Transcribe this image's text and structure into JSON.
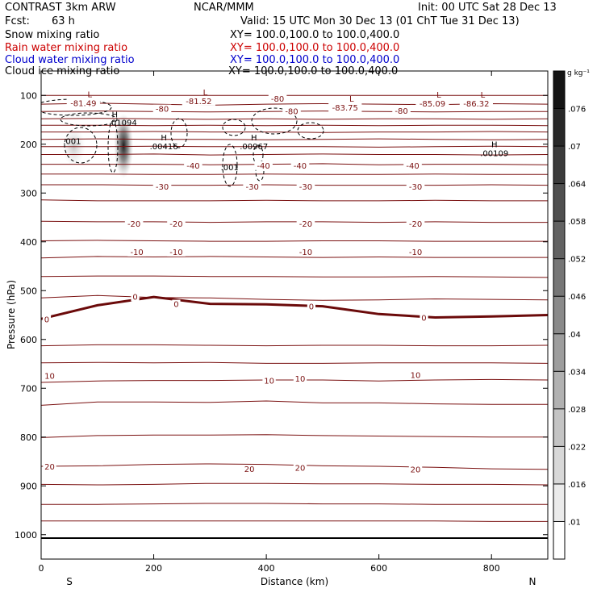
{
  "header": {
    "model": "CONTRAST  3km ARW",
    "center": "NCAR/MMM",
    "init": "Init: 00 UTC Sat 28 Dec 13",
    "fcst_label": "Fcst:",
    "fcst_value": "63 h",
    "valid": "Valid: 15 UTC Mon 30 Dec 13 (01 ChT Tue 31 Dec 13)",
    "fields": [
      {
        "name": "Snow mixing ratio",
        "xy": "XY= 100.0,100.0 to 100.0,400.0",
        "color": "#000000"
      },
      {
        "name": "Rain water mixing ratio",
        "xy": "XY= 100.0,100.0 to 100.0,400.0",
        "color": "#cc0000"
      },
      {
        "name": "Cloud water mixing ratio",
        "xy": "XY= 100.0,100.0 to 100.0,400.0",
        "color": "#0000cc"
      },
      {
        "name": "Cloud ice mixing ratio",
        "xy": "XY= 100.0,100.0 to 100.0,400.0",
        "color": "#000000"
      }
    ]
  },
  "chart_data": {
    "type": "heatmap",
    "xlabel": "Distance (km)",
    "ylabel": "Pressure (hPa)",
    "xlim": [
      0,
      900
    ],
    "ylim": [
      1050,
      50
    ],
    "x_ticks": [
      0,
      200,
      400,
      600,
      800
    ],
    "y_ticks": [
      100,
      200,
      300,
      400,
      500,
      600,
      700,
      800,
      900,
      1000
    ],
    "x_endpoints": {
      "left": "S",
      "right": "N"
    },
    "colorbar": {
      "unit": "g kg⁻¹",
      "ticks": [
        ".01",
        ".016",
        ".022",
        ".028",
        ".034",
        ".04",
        ".046",
        ".052",
        ".058",
        ".064",
        ".07",
        ".076"
      ]
    },
    "shaded_maxima": [
      {
        "x": 125,
        "p": 195,
        "label": ".01094",
        "marker": "H"
      }
    ],
    "isotherm_labels": [
      {
        "x": 75,
        "p": 115,
        "text": "-81.49",
        "marker": "L"
      },
      {
        "x": 280,
        "p": 111,
        "text": "-81.52",
        "marker": "L"
      },
      {
        "x": 420,
        "p": 106,
        "text": "-80"
      },
      {
        "x": 215,
        "p": 127,
        "text": "-80"
      },
      {
        "x": 445,
        "p": 132,
        "text": "-80"
      },
      {
        "x": 640,
        "p": 131,
        "text": "-80"
      },
      {
        "x": 540,
        "p": 124,
        "text": "-83.75",
        "marker": "L"
      },
      {
        "x": 695,
        "p": 116,
        "text": "-85.09",
        "marker": "L"
      },
      {
        "x": 773,
        "p": 116,
        "text": "-86.32",
        "marker": "L"
      },
      {
        "x": 270,
        "p": 243,
        "text": "-40"
      },
      {
        "x": 460,
        "p": 243,
        "text": "-40"
      },
      {
        "x": 660,
        "p": 243,
        "text": "-40"
      },
      {
        "x": 395,
        "p": 243,
        "text": "-40"
      },
      {
        "x": 215,
        "p": 286,
        "text": "-30"
      },
      {
        "x": 375,
        "p": 286,
        "text": "-30"
      },
      {
        "x": 470,
        "p": 286,
        "text": "-30"
      },
      {
        "x": 665,
        "p": 286,
        "text": "-30"
      },
      {
        "x": 165,
        "p": 362,
        "text": "-20"
      },
      {
        "x": 240,
        "p": 362,
        "text": "-20"
      },
      {
        "x": 470,
        "p": 362,
        "text": "-20"
      },
      {
        "x": 665,
        "p": 362,
        "text": "-20"
      },
      {
        "x": 170,
        "p": 420,
        "text": "-10"
      },
      {
        "x": 240,
        "p": 420,
        "text": "-10"
      },
      {
        "x": 470,
        "p": 420,
        "text": "-10"
      },
      {
        "x": 665,
        "p": 420,
        "text": "-10"
      },
      {
        "x": 10,
        "p": 558,
        "text": "0"
      },
      {
        "x": 167,
        "p": 512,
        "text": "0"
      },
      {
        "x": 240,
        "p": 527,
        "text": "0"
      },
      {
        "x": 480,
        "p": 532,
        "text": "0"
      },
      {
        "x": 680,
        "p": 555,
        "text": "0"
      },
      {
        "x": 15,
        "p": 674,
        "text": "10"
      },
      {
        "x": 405,
        "p": 684,
        "text": "10"
      },
      {
        "x": 460,
        "p": 680,
        "text": "10"
      },
      {
        "x": 665,
        "p": 672,
        "text": "10"
      },
      {
        "x": 15,
        "p": 860,
        "text": "20"
      },
      {
        "x": 370,
        "p": 865,
        "text": "20"
      },
      {
        "x": 460,
        "p": 862,
        "text": "20"
      },
      {
        "x": 665,
        "p": 866,
        "text": "20"
      }
    ],
    "mixing_ratio_labels": [
      {
        "x": 55,
        "p": 193,
        "text": ".001"
      },
      {
        "x": 218,
        "p": 204,
        "text": ".00416",
        "marker": "H"
      },
      {
        "x": 335,
        "p": 247,
        "text": ".001"
      },
      {
        "x": 378,
        "p": 204,
        "text": ".00967",
        "marker": "H"
      },
      {
        "x": 805,
        "p": 218,
        "text": ".00109",
        "marker": "H"
      }
    ],
    "isotherm_levels": [
      [
        100,
        100,
        100,
        100,
        100,
        100,
        100,
        100,
        100,
        100
      ],
      [
        118,
        116,
        118,
        120,
        118,
        117,
        118,
        119,
        117,
        118
      ],
      [
        133,
        132,
        133,
        134,
        133,
        132,
        133,
        134,
        133,
        133
      ],
      [
        148,
        147,
        148,
        149,
        148,
        149,
        148,
        148,
        149,
        148
      ],
      [
        161,
        161,
        162,
        161,
        162,
        161,
        162,
        161,
        161,
        162
      ],
      [
        175,
        175,
        174,
        175,
        175,
        176,
        175,
        175,
        174,
        175
      ],
      [
        190,
        189,
        190,
        190,
        191,
        190,
        189,
        190,
        191,
        190
      ],
      [
        205,
        205,
        204,
        205,
        205,
        205,
        206,
        205,
        204,
        205
      ],
      [
        221,
        221,
        220,
        222,
        221,
        220,
        221,
        221,
        222,
        221
      ],
      [
        241,
        241,
        241,
        242,
        241,
        240,
        242,
        241,
        241,
        242
      ],
      [
        261,
        261,
        262,
        262,
        261,
        262,
        262,
        261,
        262,
        262
      ],
      [
        283,
        283,
        284,
        284,
        283,
        284,
        284,
        284,
        283,
        284
      ],
      [
        314,
        316,
        316,
        316,
        315,
        316,
        316,
        315,
        316,
        316
      ],
      [
        358,
        359,
        359,
        360,
        359,
        359,
        360,
        359,
        360,
        360
      ],
      [
        398,
        397,
        398,
        399,
        399,
        398,
        398,
        399,
        399,
        399
      ],
      [
        433,
        430,
        431,
        430,
        431,
        432,
        431,
        432,
        432,
        432
      ],
      [
        471,
        470,
        470,
        471,
        471,
        472,
        472,
        471,
        472,
        473
      ],
      [
        515,
        510,
        514,
        515,
        518,
        520,
        519,
        517,
        518,
        519
      ],
      [
        613,
        611,
        611,
        612,
        613,
        612,
        612,
        613,
        613,
        612
      ],
      [
        648,
        647,
        648,
        647,
        649,
        649,
        648,
        648,
        648,
        649
      ],
      [
        688,
        685,
        684,
        684,
        683,
        683,
        685,
        683,
        682,
        683
      ],
      [
        735,
        728,
        728,
        729,
        726,
        730,
        730,
        732,
        733,
        733
      ],
      [
        801,
        797,
        796,
        796,
        795,
        797,
        798,
        799,
        800,
        800
      ],
      [
        860,
        859,
        856,
        855,
        856,
        859,
        860,
        862,
        865,
        866
      ],
      [
        897,
        898,
        897,
        895,
        895,
        896,
        896,
        897,
        897,
        898
      ],
      [
        938,
        938,
        937,
        936,
        936,
        937,
        937,
        938,
        938,
        938
      ],
      [
        972,
        972,
        972,
        972,
        972,
        972,
        972,
        972,
        973,
        973
      ]
    ],
    "zero_isotherm": [
      558,
      530,
      513,
      527,
      528,
      532,
      548,
      555,
      553,
      550
    ]
  }
}
